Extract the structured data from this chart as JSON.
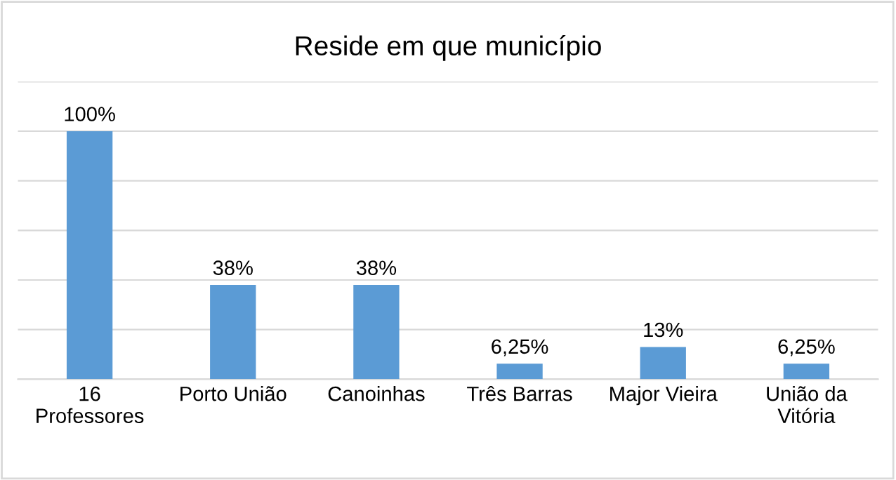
{
  "chart_data": {
    "type": "bar",
    "title": "Reside em que município",
    "categories": [
      "16\nProfessores",
      "Porto União",
      "Canoinhas",
      "Três Barras",
      "Major Vieira",
      "União da\nVitória"
    ],
    "values": [
      100,
      38,
      38,
      6.25,
      13,
      6.25
    ],
    "value_labels": [
      "100%",
      "38%",
      "38%",
      "6,25%",
      "13%",
      "6,25%"
    ],
    "color": "#5b9bd5",
    "ylim": [
      0,
      120
    ],
    "yticks": [
      {
        "value": 0,
        "label": null
      },
      {
        "value": 20,
        "label": null
      },
      {
        "value": 40,
        "label": null
      },
      {
        "value": 60,
        "label": null
      },
      {
        "value": 80,
        "label": null
      },
      {
        "value": 100,
        "label": null
      },
      {
        "value": 120,
        "label": null
      }
    ],
    "grid": "y",
    "tick_labels": "x",
    "legend": false
  }
}
